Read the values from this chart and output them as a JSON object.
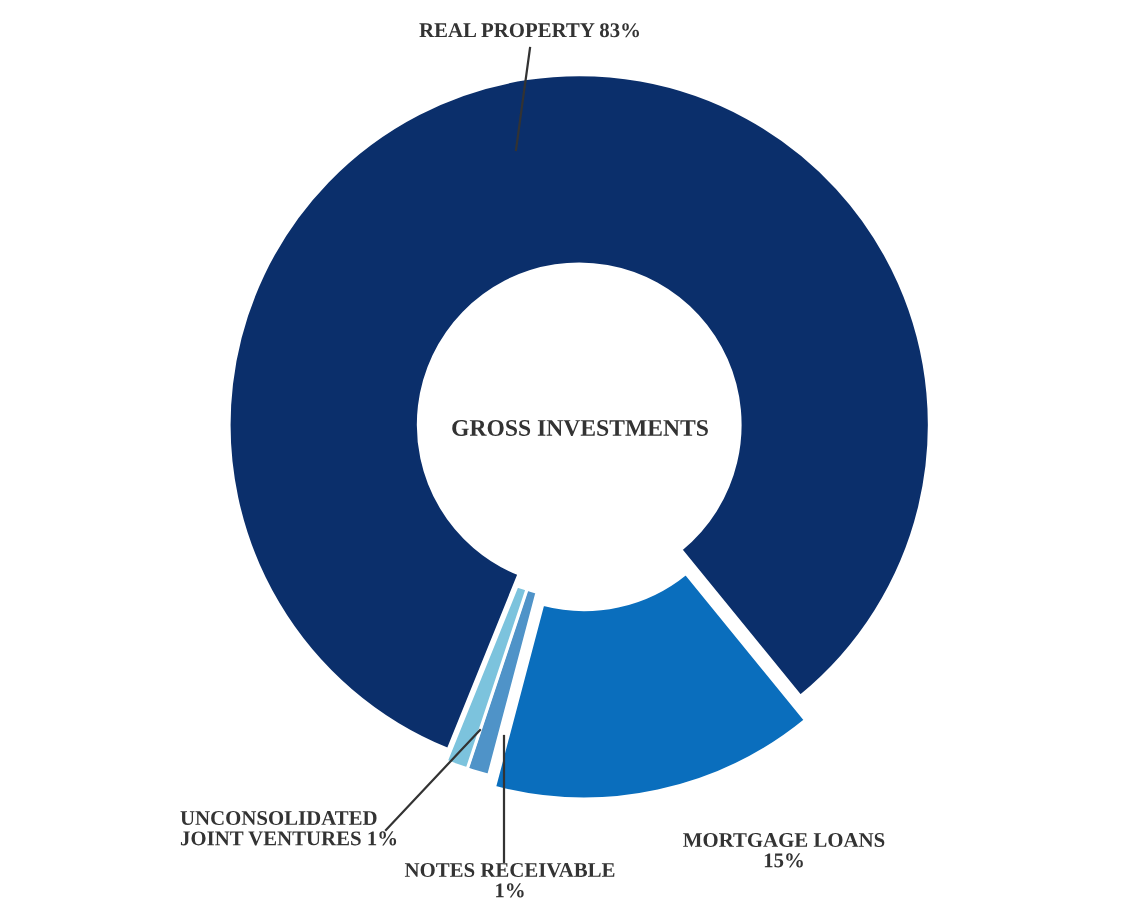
{
  "chart_data": {
    "type": "donut",
    "title": "GROSS INVESTMENTS",
    "categories": [
      "REAL PROPERTY",
      "MORTGAGE LOANS",
      "NOTES RECEIVABLE",
      "UNCONSOLIDATED JOINT VENTURES"
    ],
    "values": [
      83,
      15,
      1,
      1
    ],
    "colors": [
      "#0b2f6b",
      "#0a6ebd",
      "#4f93c8",
      "#7cc3dd"
    ],
    "value_labels": [
      "83%",
      "15%",
      "1%",
      "1%"
    ],
    "legend": false
  }
}
